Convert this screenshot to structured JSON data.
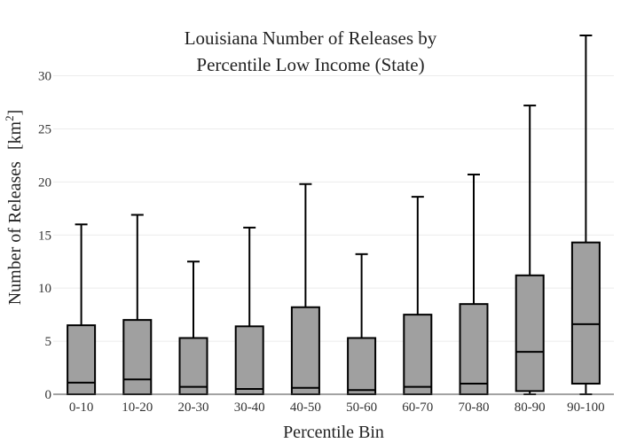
{
  "chart_data": {
    "type": "box",
    "title_lines": [
      "Louisiana Number of Releases by",
      "Percentile Low Income (State)"
    ],
    "xlabel": "Percentile Bin",
    "ylabel": "Number of Releases",
    "ylabel_unit_base": "[km",
    "ylabel_unit_sup": "2",
    "ylabel_unit_end": "]",
    "ylim": [
      0,
      33.8
    ],
    "yticks": [
      0,
      5,
      10,
      15,
      20,
      25,
      30
    ],
    "grid": true,
    "categories": [
      "0-10",
      "10-20",
      "20-30",
      "30-40",
      "40-50",
      "50-60",
      "60-70",
      "70-80",
      "80-90",
      "90-100"
    ],
    "boxes": [
      {
        "min": 0,
        "q1": 0,
        "median": 1.1,
        "q3": 6.5,
        "max": 16.0
      },
      {
        "min": 0,
        "q1": 0,
        "median": 1.4,
        "q3": 7.0,
        "max": 16.9
      },
      {
        "min": 0,
        "q1": 0,
        "median": 0.7,
        "q3": 5.3,
        "max": 12.5
      },
      {
        "min": 0,
        "q1": 0,
        "median": 0.5,
        "q3": 6.4,
        "max": 15.7
      },
      {
        "min": 0,
        "q1": 0,
        "median": 0.6,
        "q3": 8.2,
        "max": 19.8
      },
      {
        "min": 0,
        "q1": 0,
        "median": 0.4,
        "q3": 5.3,
        "max": 13.2
      },
      {
        "min": 0,
        "q1": 0,
        "median": 0.7,
        "q3": 7.5,
        "max": 18.6
      },
      {
        "min": 0,
        "q1": 0,
        "median": 1.0,
        "q3": 8.5,
        "max": 20.7
      },
      {
        "min": 0,
        "q1": 0.3,
        "median": 4.0,
        "q3": 11.2,
        "max": 27.2
      },
      {
        "min": 0,
        "q1": 1.0,
        "median": 6.6,
        "q3": 14.3,
        "max": 33.8
      }
    ]
  }
}
